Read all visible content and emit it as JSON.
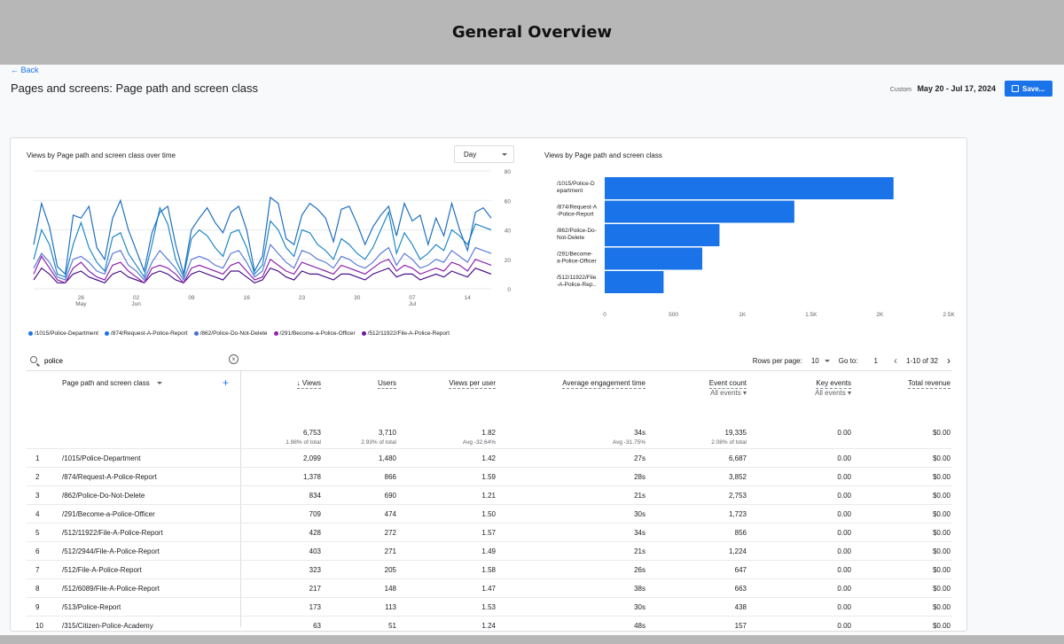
{
  "heading": "General Overview",
  "back": "← Back",
  "report_title": "Pages and screens: Page path and screen class",
  "date": {
    "label": "Custom",
    "range": "May 20 - Jul 17, 2024"
  },
  "save_label": "Save...",
  "line_chart": {
    "title": "Views by Page path and screen class over time",
    "granularity": "Day",
    "y_ticks": [
      "80",
      "60",
      "40",
      "20",
      "0"
    ],
    "x_ticks": [
      {
        "label": "26",
        "sub": "May"
      },
      {
        "label": "02",
        "sub": "Jun"
      },
      {
        "label": "09",
        "sub": ""
      },
      {
        "label": "16",
        "sub": ""
      },
      {
        "label": "23",
        "sub": ""
      },
      {
        "label": "30",
        "sub": ""
      },
      {
        "label": "07",
        "sub": "Jul"
      },
      {
        "label": "14",
        "sub": ""
      }
    ],
    "legend": [
      {
        "name": "/1015/Police-Department",
        "color": "#1a73e8"
      },
      {
        "name": "/874/Request-A-Police-Report",
        "color": "#1a73e8"
      },
      {
        "name": "/862/Police-Do-Not-Delete",
        "color": "#4a6ee0"
      },
      {
        "name": "/291/Become-a-Police-Officer",
        "color": "#8e24aa"
      },
      {
        "name": "/512/11922/File-A-Police-Report",
        "color": "#6a1b9a"
      }
    ]
  },
  "bar_chart": {
    "title": "Views by Page path and screen class",
    "x_ticks": [
      "0",
      "500",
      "1K",
      "1.5K",
      "2K",
      "2.5K"
    ],
    "labels": [
      [
        "/1015/Police-D",
        "epartment"
      ],
      [
        "/874/Request-A",
        "-Police-Report"
      ],
      [
        "/862/Police-Do-",
        "Not-Delete"
      ],
      [
        "/291/Become-",
        "a-Police-Officer"
      ],
      [
        "/512/11922/File",
        "-A-Police-Rep.."
      ]
    ]
  },
  "chart_data": [
    {
      "type": "line",
      "title": "Views by Page path and screen class over time",
      "x": [
        "May 20",
        "May 21",
        "May 22",
        "May 23",
        "May 24",
        "May 25",
        "May 26",
        "May 27",
        "May 28",
        "May 29",
        "May 30",
        "May 31",
        "Jun 01",
        "Jun 02",
        "Jun 03",
        "Jun 04",
        "Jun 05",
        "Jun 06",
        "Jun 07",
        "Jun 08",
        "Jun 09",
        "Jun 10",
        "Jun 11",
        "Jun 12",
        "Jun 13",
        "Jun 14",
        "Jun 15",
        "Jun 16",
        "Jun 17",
        "Jun 18",
        "Jun 19",
        "Jun 20",
        "Jun 21",
        "Jun 22",
        "Jun 23",
        "Jun 24",
        "Jun 25",
        "Jun 26",
        "Jun 27",
        "Jun 28",
        "Jun 29",
        "Jun 30",
        "Jul 01",
        "Jul 02",
        "Jul 03",
        "Jul 04",
        "Jul 05",
        "Jul 06",
        "Jul 07",
        "Jul 08",
        "Jul 09",
        "Jul 10",
        "Jul 11",
        "Jul 12",
        "Jul 13",
        "Jul 14",
        "Jul 15",
        "Jul 16",
        "Jul 17"
      ],
      "ylim": [
        0,
        80
      ],
      "series": [
        {
          "name": "/1015/Police-Department",
          "color": "#1f6fbf",
          "values": [
            30,
            58,
            42,
            15,
            10,
            50,
            48,
            56,
            28,
            20,
            48,
            60,
            40,
            26,
            12,
            38,
            52,
            56,
            30,
            10,
            40,
            48,
            55,
            45,
            38,
            52,
            56,
            40,
            12,
            22,
            62,
            58,
            34,
            30,
            50,
            58,
            54,
            48,
            32,
            54,
            56,
            44,
            30,
            42,
            50,
            56,
            36,
            58,
            46,
            50,
            30,
            48,
            36,
            58,
            40,
            26,
            52,
            55,
            48
          ]
        },
        {
          "name": "/874/Request-A-Police-Report",
          "color": "#1e88c5",
          "values": [
            20,
            40,
            30,
            10,
            8,
            30,
            45,
            28,
            18,
            12,
            35,
            38,
            24,
            16,
            8,
            30,
            55,
            44,
            20,
            8,
            34,
            40,
            36,
            28,
            22,
            38,
            40,
            28,
            10,
            16,
            46,
            40,
            28,
            22,
            40,
            38,
            30,
            26,
            20,
            34,
            30,
            24,
            20,
            28,
            40,
            52,
            24,
            38,
            30,
            20,
            24,
            30,
            26,
            40,
            36,
            30,
            44,
            42,
            40
          ]
        },
        {
          "name": "/862/Police-Do-Not-Delete",
          "color": "#5c7bd6",
          "values": [
            14,
            24,
            18,
            8,
            6,
            20,
            22,
            18,
            12,
            10,
            24,
            26,
            16,
            12,
            6,
            18,
            26,
            20,
            14,
            6,
            20,
            22,
            20,
            16,
            14,
            24,
            26,
            18,
            8,
            12,
            30,
            24,
            18,
            14,
            26,
            24,
            20,
            18,
            14,
            22,
            20,
            16,
            14,
            18,
            24,
            28,
            16,
            24,
            20,
            14,
            16,
            20,
            18,
            26,
            22,
            18,
            28,
            26,
            24
          ]
        },
        {
          "name": "/291/Become-a-Police-Officer",
          "color": "#8e24aa",
          "values": [
            10,
            22,
            14,
            6,
            4,
            14,
            18,
            12,
            8,
            6,
            16,
            18,
            12,
            8,
            4,
            14,
            16,
            14,
            10,
            4,
            14,
            16,
            14,
            12,
            10,
            16,
            18,
            12,
            6,
            8,
            20,
            16,
            12,
            10,
            18,
            16,
            14,
            12,
            10,
            16,
            14,
            12,
            10,
            14,
            18,
            20,
            12,
            16,
            14,
            10,
            12,
            14,
            12,
            18,
            16,
            12,
            20,
            18,
            16
          ]
        },
        {
          "name": "/512/11922/File-A-Police-Report",
          "color": "#4a148c",
          "values": [
            6,
            14,
            10,
            4,
            4,
            10,
            12,
            8,
            6,
            4,
            10,
            12,
            8,
            6,
            4,
            10,
            12,
            10,
            6,
            4,
            10,
            12,
            10,
            8,
            6,
            12,
            12,
            8,
            4,
            6,
            14,
            12,
            8,
            6,
            12,
            10,
            10,
            8,
            6,
            10,
            10,
            8,
            6,
            10,
            12,
            14,
            8,
            10,
            10,
            6,
            8,
            10,
            8,
            12,
            10,
            8,
            14,
            12,
            10
          ]
        }
      ]
    },
    {
      "type": "bar",
      "title": "Views by Page path and screen class",
      "categories": [
        "/1015/Police-Department",
        "/874/Request-A-Police-Report",
        "/862/Police-Do-Not-Delete",
        "/291/Become-a-Police-Officer",
        "/512/11922/File-A-Police-Report"
      ],
      "values": [
        2099,
        1378,
        834,
        709,
        428
      ],
      "xlim": [
        0,
        2500
      ],
      "color": "#1a73e8"
    }
  ],
  "search": {
    "value": "police"
  },
  "pager": {
    "rows_label": "Rows per page:",
    "rows_value": "10",
    "goto_label": "Go to:",
    "goto_value": "1",
    "range": "1-10 of 32"
  },
  "table": {
    "dimension_header": "Page path and screen class",
    "headers": {
      "views": "↓ Views",
      "users": "Users",
      "vpu": "Views per user",
      "aet": "Average engagement time",
      "events": "Event count",
      "events_sub": "All events",
      "key": "Key events",
      "key_sub": "All events",
      "rev": "Total revenue"
    },
    "totals": {
      "views": "6,753",
      "views_pct": "1.98% of total",
      "users": "3,710",
      "users_pct": "2.93% of total",
      "vpu": "1.82",
      "vpu_pct": "Avg -32.64%",
      "aet": "34s",
      "aet_pct": "Avg -31.75%",
      "events": "19,335",
      "events_pct": "2.08% of total",
      "key": "0.00",
      "rev": "$0.00"
    },
    "rows": [
      {
        "n": "1",
        "path": "/1015/Police-Department",
        "views": "2,099",
        "users": "1,480",
        "vpu": "1.42",
        "aet": "27s",
        "events": "6,687",
        "key": "0.00",
        "rev": "$0.00"
      },
      {
        "n": "2",
        "path": "/874/Request-A-Police-Report",
        "views": "1,378",
        "users": "866",
        "vpu": "1.59",
        "aet": "28s",
        "events": "3,852",
        "key": "0.00",
        "rev": "$0.00"
      },
      {
        "n": "3",
        "path": "/862/Police-Do-Not-Delete",
        "views": "834",
        "users": "690",
        "vpu": "1.21",
        "aet": "21s",
        "events": "2,753",
        "key": "0.00",
        "rev": "$0.00"
      },
      {
        "n": "4",
        "path": "/291/Become-a-Police-Officer",
        "views": "709",
        "users": "474",
        "vpu": "1.50",
        "aet": "30s",
        "events": "1,723",
        "key": "0.00",
        "rev": "$0.00"
      },
      {
        "n": "5",
        "path": "/512/11922/File-A-Police-Report",
        "views": "428",
        "users": "272",
        "vpu": "1.57",
        "aet": "34s",
        "events": "856",
        "key": "0.00",
        "rev": "$0.00"
      },
      {
        "n": "6",
        "path": "/512/2944/File-A-Police-Report",
        "views": "403",
        "users": "271",
        "vpu": "1.49",
        "aet": "21s",
        "events": "1,224",
        "key": "0.00",
        "rev": "$0.00"
      },
      {
        "n": "7",
        "path": "/512/File-A-Police-Report",
        "views": "323",
        "users": "205",
        "vpu": "1.58",
        "aet": "26s",
        "events": "647",
        "key": "0.00",
        "rev": "$0.00"
      },
      {
        "n": "8",
        "path": "/512/6089/File-A-Police-Report",
        "views": "217",
        "users": "148",
        "vpu": "1.47",
        "aet": "38s",
        "events": "663",
        "key": "0.00",
        "rev": "$0.00"
      },
      {
        "n": "9",
        "path": "/513/Police-Report",
        "views": "173",
        "users": "113",
        "vpu": "1.53",
        "aet": "30s",
        "events": "438",
        "key": "0.00",
        "rev": "$0.00"
      },
      {
        "n": "10",
        "path": "/315/Citizen-Police-Academy",
        "views": "63",
        "users": "51",
        "vpu": "1.24",
        "aet": "48s",
        "events": "157",
        "key": "0.00",
        "rev": "$0.00"
      }
    ]
  }
}
